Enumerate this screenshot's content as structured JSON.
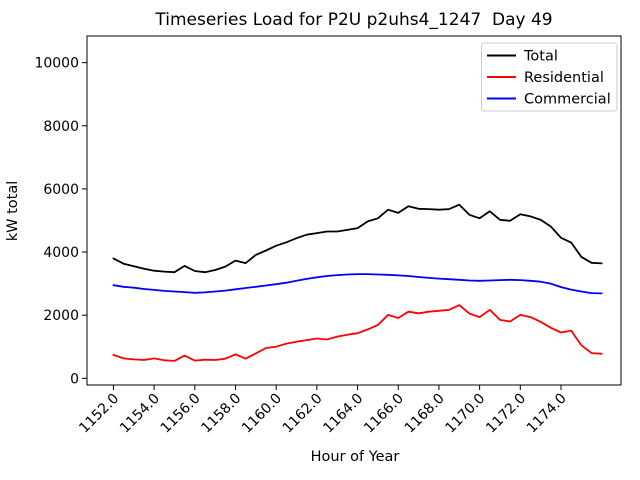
{
  "figure": {
    "background": "#ffffff"
  },
  "chart_data": {
    "type": "line",
    "title": "Timeseries Load for P2U p2uhs4_1247  Day 49",
    "xlabel": "Hour of Year",
    "ylabel": "kW total",
    "grid": false,
    "legend_position": "upper right",
    "xlim": [
      1150.7,
      1176.95
    ],
    "ylim": [
      -212,
      10844
    ],
    "x_ticks": [
      1152,
      1154,
      1156,
      1158,
      1160,
      1162,
      1164,
      1166,
      1168,
      1170,
      1172,
      1174
    ],
    "x_tick_labels": [
      "1152.0",
      "1154.0",
      "1156.0",
      "1158.0",
      "1160.0",
      "1162.0",
      "1164.0",
      "1166.0",
      "1168.0",
      "1170.0",
      "1172.0",
      "1174.0"
    ],
    "y_ticks": [
      0,
      2000,
      4000,
      6000,
      8000,
      10000
    ],
    "y_tick_labels": [
      "0",
      "2000",
      "4000",
      "6000",
      "8000",
      "10000"
    ],
    "x": [
      1152.0,
      1152.5,
      1153.0,
      1153.5,
      1154.0,
      1154.5,
      1155.0,
      1155.5,
      1156.0,
      1156.5,
      1157.0,
      1157.5,
      1158.0,
      1158.5,
      1159.0,
      1159.5,
      1160.0,
      1160.5,
      1161.0,
      1161.5,
      1162.0,
      1162.5,
      1163.0,
      1163.5,
      1164.0,
      1164.5,
      1165.0,
      1165.5,
      1166.0,
      1166.5,
      1167.0,
      1167.5,
      1168.0,
      1168.5,
      1169.0,
      1169.5,
      1170.0,
      1170.5,
      1171.0,
      1171.5,
      1172.0,
      1172.5,
      1173.0,
      1173.5,
      1174.0,
      1174.5,
      1175.0,
      1175.5,
      1176.0
    ],
    "series": [
      {
        "name": "Total",
        "color": "#000000",
        "values": [
          3800,
          3630,
          3550,
          3470,
          3410,
          3380,
          3360,
          3560,
          3400,
          3360,
          3430,
          3540,
          3730,
          3650,
          3910,
          4050,
          4200,
          4310,
          4440,
          4550,
          4600,
          4650,
          4650,
          4700,
          4760,
          4970,
          5070,
          5340,
          5240,
          5450,
          5370,
          5360,
          5340,
          5360,
          5500,
          5180,
          5070,
          5290,
          5020,
          4990,
          5200,
          5130,
          5020,
          4810,
          4450,
          4300,
          3850,
          3660,
          3640
        ]
      },
      {
        "name": "Residential",
        "color": "#ff0000",
        "values": [
          740,
          630,
          600,
          580,
          630,
          570,
          550,
          720,
          560,
          590,
          580,
          620,
          760,
          620,
          790,
          960,
          1000,
          1100,
          1160,
          1210,
          1260,
          1230,
          1320,
          1380,
          1430,
          1550,
          1690,
          2010,
          1910,
          2110,
          2060,
          2110,
          2140,
          2170,
          2320,
          2050,
          1940,
          2170,
          1850,
          1800,
          2010,
          1940,
          1790,
          1600,
          1450,
          1510,
          1050,
          800,
          780
        ]
      },
      {
        "name": "Commercial",
        "color": "#0000ff",
        "values": [
          2950,
          2900,
          2870,
          2830,
          2800,
          2770,
          2750,
          2730,
          2710,
          2720,
          2750,
          2780,
          2820,
          2860,
          2900,
          2940,
          2980,
          3030,
          3090,
          3150,
          3200,
          3240,
          3270,
          3290,
          3300,
          3300,
          3290,
          3280,
          3260,
          3240,
          3210,
          3180,
          3160,
          3140,
          3120,
          3100,
          3090,
          3100,
          3110,
          3120,
          3110,
          3090,
          3060,
          3000,
          2890,
          2810,
          2750,
          2700,
          2690
        ]
      }
    ]
  }
}
